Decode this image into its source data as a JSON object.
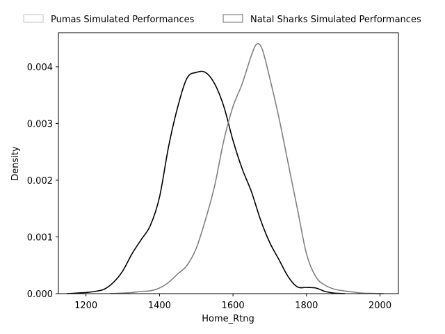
{
  "chart_data": {
    "type": "line",
    "title": "",
    "xlabel": "Home_Rtng",
    "ylabel": "Density",
    "xlim": [
      1125,
      2050
    ],
    "ylim": [
      0,
      0.0046
    ],
    "xticks": [
      1200,
      1400,
      1600,
      1800,
      2000
    ],
    "yticks": [
      0.0,
      0.001,
      0.002,
      0.003,
      0.004
    ],
    "ytick_labels": [
      "0.000",
      "0.001",
      "0.002",
      "0.003",
      "0.004"
    ],
    "grid": false,
    "legend_position": "above plot, horizontal",
    "series": [
      {
        "name": "Pumas Simulated Performances",
        "color": "#000000",
        "legend_color": "#cccccc",
        "x": [
          1148,
          1175,
          1200,
          1225,
          1250,
          1275,
          1300,
          1325,
          1350,
          1375,
          1400,
          1425,
          1450,
          1475,
          1500,
          1525,
          1550,
          1575,
          1600,
          1625,
          1650,
          1675,
          1700,
          1725,
          1750,
          1775,
          1800,
          1825,
          1850,
          1875,
          1905
        ],
        "y": [
          0.0,
          1e-05,
          2e-05,
          4e-05,
          8e-05,
          0.0002,
          0.0004,
          0.0007,
          0.00095,
          0.0012,
          0.0017,
          0.0026,
          0.0033,
          0.0038,
          0.0039,
          0.0039,
          0.0037,
          0.0033,
          0.0027,
          0.0022,
          0.0018,
          0.0013,
          0.0009,
          0.0006,
          0.0003,
          0.00012,
          0.00011,
          0.0001,
          4e-05,
          1e-05,
          0.0
        ]
      },
      {
        "name": "Natal Sharks Simulated Performances",
        "color": "#808080",
        "legend_color": "#808080",
        "x": [
          1265,
          1300,
          1325,
          1350,
          1375,
          1400,
          1425,
          1450,
          1475,
          1500,
          1525,
          1550,
          1575,
          1600,
          1625,
          1650,
          1665,
          1680,
          1700,
          1725,
          1750,
          1775,
          1800,
          1825,
          1850,
          1875,
          1900,
          1925,
          1950,
          1975,
          2010
        ],
        "y": [
          0.0,
          1e-05,
          2e-05,
          4e-05,
          5e-05,
          0.0001,
          0.0002,
          0.00035,
          0.0005,
          0.0008,
          0.0013,
          0.0019,
          0.0027,
          0.0033,
          0.0037,
          0.0042,
          0.0044,
          0.0043,
          0.0038,
          0.0031,
          0.0023,
          0.0015,
          0.0007,
          0.0003,
          0.00015,
          8e-05,
          5e-05,
          3e-05,
          1e-05,
          5e-06,
          0.0
        ]
      }
    ]
  }
}
